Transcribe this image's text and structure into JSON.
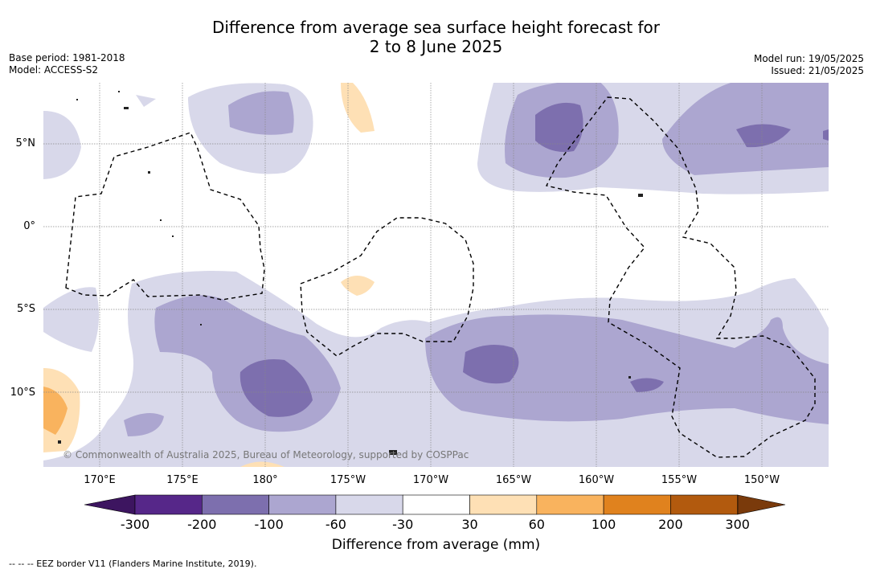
{
  "title_line1": "Difference from average sea surface height forecast for",
  "title_line2": "2 to 8 June 2025",
  "base_period": "Base period: 1981-2018",
  "model": "Model: ACCESS-S2",
  "model_run": "Model run: 19/05/2025",
  "issued": "Issued: 21/05/2025",
  "lat_labels": [
    "5°N",
    "0°",
    "5°S",
    "10°S"
  ],
  "lon_labels": [
    "170°E",
    "175°E",
    "180°",
    "175°W",
    "170°W",
    "165°W",
    "160°W",
    "155°W",
    "150°W"
  ],
  "copyright": "© Commonwealth of Australia 2025, Bureau of Meteorology, supported by COSPPac",
  "colorbar": {
    "ticks": [
      "-300",
      "-200",
      "-100",
      "-60",
      "-30",
      "30",
      "60",
      "100",
      "200",
      "300"
    ],
    "colors": [
      "#3d1560",
      "#562789",
      "#7d6fae",
      "#aca6d0",
      "#d8d8ea",
      "#ffffff",
      "#fee0b5",
      "#f9b35e",
      "#e0821e",
      "#b25a0e",
      "#7a3a0b"
    ],
    "title": "Difference from average (mm)"
  },
  "footer": "--  --  -- EEZ border V11 (Flanders Marine Institute, 2019)."
}
